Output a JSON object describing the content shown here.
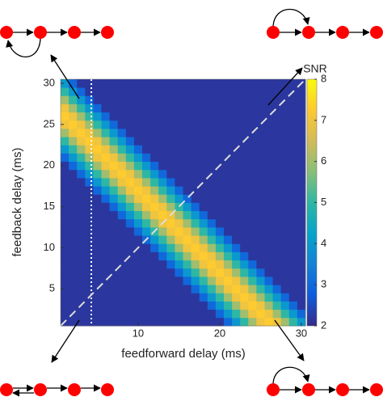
{
  "chart_data": {
    "type": "heatmap",
    "x_label": "feedforward delay (ms)",
    "y_label": "feedback delay (ms)",
    "colorbar_label": "SNR",
    "x": [
      1,
      2,
      3,
      4,
      5,
      6,
      7,
      8,
      9,
      10,
      11,
      12,
      13,
      14,
      15,
      16,
      17,
      18,
      19,
      20,
      21,
      22,
      23,
      24,
      25,
      26,
      27,
      28,
      29,
      30
    ],
    "y": [
      1,
      2,
      3,
      4,
      5,
      6,
      7,
      8,
      9,
      10,
      11,
      12,
      13,
      14,
      15,
      16,
      17,
      18,
      19,
      20,
      21,
      22,
      23,
      24,
      25,
      26,
      27,
      28,
      29,
      30
    ],
    "xlim": [
      0.5,
      30.5
    ],
    "ylim": [
      0.5,
      30.5
    ],
    "xticks": [
      10,
      20,
      30
    ],
    "yticks": [
      5,
      10,
      15,
      20,
      25,
      30
    ],
    "zlim": [
      2,
      8
    ],
    "zticks": [
      2,
      3,
      4,
      5,
      6,
      7,
      8
    ],
    "colorscale": [
      "#352A87",
      "#0F5CDD",
      "#1481D6",
      "#06A4CA",
      "#2EB7A4",
      "#87BF77",
      "#D1BB59",
      "#FEC832",
      "#F9FB0E"
    ],
    "z": [
      [
        2.2,
        2.2,
        2.2,
        2.2,
        2.2,
        2.2,
        2.2,
        2.2,
        2.2,
        2.2,
        2.2,
        2.2,
        2.2,
        2.2,
        2.2,
        2.2,
        2.2,
        2.2,
        2.2,
        2.2,
        3,
        4,
        5,
        6,
        7,
        7.3,
        7,
        6,
        5,
        4
      ],
      [
        2.2,
        2.2,
        2.2,
        2.2,
        2.2,
        2.2,
        2.2,
        2.2,
        2.2,
        2.2,
        2.2,
        2.2,
        2.2,
        2.2,
        2.2,
        2.2,
        2.2,
        2.2,
        2.2,
        3,
        4,
        5,
        6,
        7,
        7.3,
        7,
        6,
        5,
        4,
        3
      ],
      [
        2.2,
        2.2,
        2.2,
        2.2,
        2.2,
        2.2,
        2.2,
        2.2,
        2.2,
        2.2,
        2.2,
        2.2,
        2.2,
        2.2,
        2.2,
        2.2,
        2.2,
        2.2,
        3,
        4,
        5,
        6,
        7,
        7.3,
        7,
        6,
        5,
        4,
        3,
        2.2
      ],
      [
        2.2,
        2.2,
        2.2,
        2.2,
        2.2,
        2.2,
        2.2,
        2.2,
        2.2,
        2.2,
        2.2,
        2.2,
        2.2,
        2.2,
        2.2,
        2.2,
        2.2,
        3,
        4,
        5,
        6,
        7,
        7.3,
        7,
        6,
        5,
        4,
        3,
        2.2,
        2.2
      ],
      [
        2.2,
        2.2,
        2.2,
        2.2,
        2.2,
        2.2,
        2.2,
        2.2,
        2.2,
        2.2,
        2.2,
        2.2,
        2.2,
        2.2,
        2.2,
        2.2,
        3,
        4,
        5,
        6,
        7,
        7.3,
        7,
        6,
        5,
        4,
        3,
        2.2,
        2.2,
        2.2
      ],
      [
        2.2,
        2.2,
        2.2,
        2.2,
        2.2,
        2.2,
        2.2,
        2.2,
        2.2,
        2.2,
        2.2,
        2.2,
        2.2,
        2.2,
        2.2,
        3,
        4,
        5,
        6,
        7,
        7.3,
        7,
        6,
        5,
        4,
        3,
        2.2,
        2.2,
        2.2,
        2.2
      ],
      [
        2.2,
        2.2,
        2.2,
        2.2,
        2.2,
        2.2,
        2.2,
        2.2,
        2.2,
        2.2,
        2.2,
        2.2,
        2.2,
        2.2,
        3,
        4,
        5,
        6,
        7,
        7.3,
        7,
        6,
        5,
        4,
        3,
        2.2,
        2.2,
        2.2,
        2.2,
        2.2
      ],
      [
        2.2,
        2.2,
        2.2,
        2.2,
        2.2,
        2.2,
        2.2,
        2.2,
        2.2,
        2.2,
        2.2,
        2.2,
        2.2,
        3,
        4,
        5,
        6,
        7,
        7.3,
        7,
        6,
        5,
        4,
        3,
        2.2,
        2.2,
        2.2,
        2.2,
        2.2,
        2.2
      ],
      [
        2.2,
        2.2,
        2.2,
        2.2,
        2.2,
        2.2,
        2.2,
        2.2,
        2.2,
        2.2,
        2.2,
        2.2,
        3,
        4,
        5,
        6,
        7,
        7.3,
        7,
        6,
        5,
        4,
        3,
        2.2,
        2.2,
        2.2,
        2.2,
        2.2,
        2.2,
        2.2
      ],
      [
        2.2,
        2.2,
        2.2,
        2.2,
        2.2,
        2.2,
        2.2,
        2.2,
        2.2,
        2.2,
        2.2,
        3,
        4,
        5,
        6,
        7,
        7.3,
        7,
        6,
        5,
        4,
        3,
        2.2,
        2.2,
        2.2,
        2.2,
        2.2,
        2.2,
        2.2,
        2.2
      ],
      [
        2.2,
        2.2,
        2.2,
        2.2,
        2.2,
        2.2,
        2.2,
        2.2,
        2.2,
        2.2,
        3,
        4,
        5,
        6,
        7,
        7.3,
        7,
        6,
        5,
        4,
        3,
        2.2,
        2.2,
        2.2,
        2.2,
        2.2,
        2.2,
        2.2,
        2.2,
        2.2
      ],
      [
        2.2,
        2.2,
        2.2,
        2.2,
        2.2,
        2.2,
        2.2,
        2.2,
        2.2,
        3,
        4,
        5,
        6,
        7,
        7.3,
        7,
        6,
        5,
        4,
        3,
        2.2,
        2.2,
        2.2,
        2.2,
        2.2,
        2.2,
        2.2,
        2.2,
        2.2,
        2.2
      ],
      [
        2.2,
        2.2,
        2.2,
        2.2,
        2.2,
        2.2,
        2.2,
        2.2,
        3,
        4,
        5,
        6,
        7,
        7.3,
        7,
        6,
        5,
        4,
        3,
        2.2,
        2.2,
        2.2,
        2.2,
        2.2,
        2.2,
        2.2,
        2.2,
        2.2,
        2.2,
        2.2
      ],
      [
        2.2,
        2.2,
        2.2,
        2.2,
        2.2,
        2.2,
        2.2,
        3,
        4,
        5,
        6,
        7,
        7.3,
        7,
        6,
        5,
        4,
        3,
        2.2,
        2.2,
        2.2,
        2.2,
        2.2,
        2.2,
        2.2,
        2.2,
        2.2,
        2.2,
        2.2,
        2.2
      ],
      [
        2.2,
        2.2,
        2.2,
        2.2,
        2.2,
        2.2,
        3,
        4,
        5,
        6,
        7,
        7.3,
        7,
        6,
        5,
        4,
        3,
        2.2,
        2.2,
        2.2,
        2.2,
        2.2,
        2.2,
        2.2,
        2.2,
        2.2,
        2.2,
        2.2,
        2.2,
        2.2
      ],
      [
        2.2,
        2.2,
        2.2,
        2.2,
        2.2,
        3,
        4,
        5,
        6,
        7,
        7.3,
        7,
        6,
        5,
        4,
        3,
        2.2,
        2.2,
        2.2,
        2.2,
        2.2,
        2.2,
        2.2,
        2.2,
        2.2,
        2.2,
        2.2,
        2.2,
        2.2,
        2.2
      ],
      [
        2.2,
        2.2,
        2.2,
        2.2,
        3,
        4,
        5,
        6,
        7,
        7.3,
        7,
        6,
        5,
        4,
        3,
        2.2,
        2.2,
        2.2,
        2.2,
        2.2,
        2.2,
        2.2,
        2.2,
        2.2,
        2.2,
        2.2,
        2.2,
        2.2,
        2.2,
        2.2
      ],
      [
        2.2,
        2.2,
        2.2,
        3,
        4,
        5,
        6,
        7,
        7.3,
        7,
        6,
        5,
        4,
        3,
        2.2,
        2.2,
        2.2,
        2.2,
        2.2,
        2.2,
        2.2,
        2.2,
        2.2,
        2.2,
        2.2,
        2.2,
        2.2,
        2.2,
        2.2,
        2.2
      ],
      [
        2.2,
        2.2,
        3,
        4,
        5,
        6,
        7,
        7.3,
        7,
        6,
        5,
        4,
        3,
        2.2,
        2.2,
        2.2,
        2.2,
        2.2,
        2.2,
        2.2,
        2.2,
        2.2,
        2.2,
        2.2,
        2.2,
        2.2,
        2.2,
        2.2,
        2.2,
        2.2
      ],
      [
        2.2,
        3,
        4,
        5,
        6,
        7,
        7.3,
        7,
        6,
        5,
        4,
        3,
        2.2,
        2.2,
        2.2,
        2.2,
        2.2,
        2.2,
        2.2,
        2.2,
        2.2,
        2.2,
        2.2,
        2.2,
        2.2,
        2.2,
        2.2,
        2.2,
        2.2,
        2.2
      ],
      [
        3,
        4,
        5,
        6,
        7,
        7.3,
        7,
        6,
        5,
        4,
        3,
        2.2,
        2.2,
        2.2,
        2.2,
        2.2,
        2.2,
        2.2,
        2.2,
        2.2,
        2.2,
        2.2,
        2.2,
        2.2,
        2.2,
        2.2,
        2.2,
        2.2,
        2.2,
        2.2
      ],
      [
        4,
        5,
        6,
        7,
        7.3,
        7,
        6,
        5,
        4,
        3,
        2.2,
        2.2,
        2.2,
        2.2,
        2.2,
        2.2,
        2.2,
        2.2,
        2.2,
        2.2,
        2.2,
        2.2,
        2.2,
        2.2,
        2.2,
        2.2,
        2.2,
        2.2,
        2.2,
        2.2
      ],
      [
        5,
        6,
        7,
        7.3,
        7,
        6,
        5,
        4,
        3,
        2.2,
        2.2,
        2.2,
        2.2,
        2.2,
        2.2,
        2.2,
        2.2,
        2.2,
        2.2,
        2.2,
        2.2,
        2.2,
        2.2,
        2.2,
        2.2,
        2.2,
        2.2,
        2.2,
        2.2,
        2.2
      ],
      [
        6,
        7,
        7.3,
        7,
        6,
        5,
        4,
        3,
        2.2,
        2.2,
        2.2,
        2.2,
        2.2,
        2.2,
        2.2,
        2.2,
        2.2,
        2.2,
        2.2,
        2.2,
        2.2,
        2.2,
        2.2,
        2.2,
        2.2,
        2.2,
        2.2,
        2.2,
        2.2,
        2.2
      ],
      [
        7,
        7.3,
        7,
        6,
        5,
        4,
        3,
        2.2,
        2.2,
        2.2,
        2.2,
        2.2,
        2.2,
        2.2,
        2.2,
        2.2,
        2.2,
        2.2,
        2.2,
        2.2,
        2.2,
        2.2,
        2.2,
        2.2,
        2.2,
        2.2,
        2.2,
        2.2,
        2.2,
        2.2
      ],
      [
        7.3,
        7,
        6,
        5,
        4,
        3,
        2.2,
        2.2,
        2.2,
        2.2,
        2.2,
        2.2,
        2.2,
        2.2,
        2.2,
        2.2,
        2.2,
        2.2,
        2.2,
        2.2,
        2.2,
        2.2,
        2.2,
        2.2,
        2.2,
        2.2,
        2.2,
        2.2,
        2.2,
        2.2
      ],
      [
        7,
        6,
        5,
        4,
        3,
        2.2,
        2.2,
        2.2,
        2.2,
        2.2,
        2.2,
        2.2,
        2.2,
        2.2,
        2.2,
        2.2,
        2.2,
        2.2,
        2.2,
        2.2,
        2.2,
        2.2,
        2.2,
        2.2,
        2.2,
        2.2,
        2.2,
        2.2,
        2.2,
        2.2
      ],
      [
        6,
        5,
        4,
        3,
        2.2,
        2.2,
        2.2,
        2.2,
        2.2,
        2.2,
        2.2,
        2.2,
        2.2,
        2.2,
        2.2,
        2.2,
        2.2,
        2.2,
        2.2,
        2.2,
        2.2,
        2.2,
        2.2,
        2.2,
        2.2,
        2.2,
        2.2,
        2.2,
        2.2,
        2.2
      ],
      [
        5,
        4,
        3,
        2.2,
        2.2,
        2.2,
        2.2,
        2.2,
        2.2,
        2.2,
        2.2,
        2.2,
        2.2,
        2.2,
        2.2,
        2.2,
        2.2,
        2.2,
        2.2,
        2.2,
        2.2,
        2.2,
        2.2,
        2.2,
        2.2,
        2.2,
        2.2,
        2.2,
        2.2,
        2.2
      ],
      [
        4,
        3,
        2.2,
        2.2,
        2.2,
        2.2,
        2.2,
        2.2,
        2.2,
        2.2,
        2.2,
        2.2,
        2.2,
        2.2,
        2.2,
        2.2,
        2.2,
        2.2,
        2.2,
        2.2,
        2.2,
        2.2,
        2.2,
        2.2,
        2.2,
        2.2,
        2.2,
        2.2,
        2.2,
        2.2
      ]
    ]
  }
}
